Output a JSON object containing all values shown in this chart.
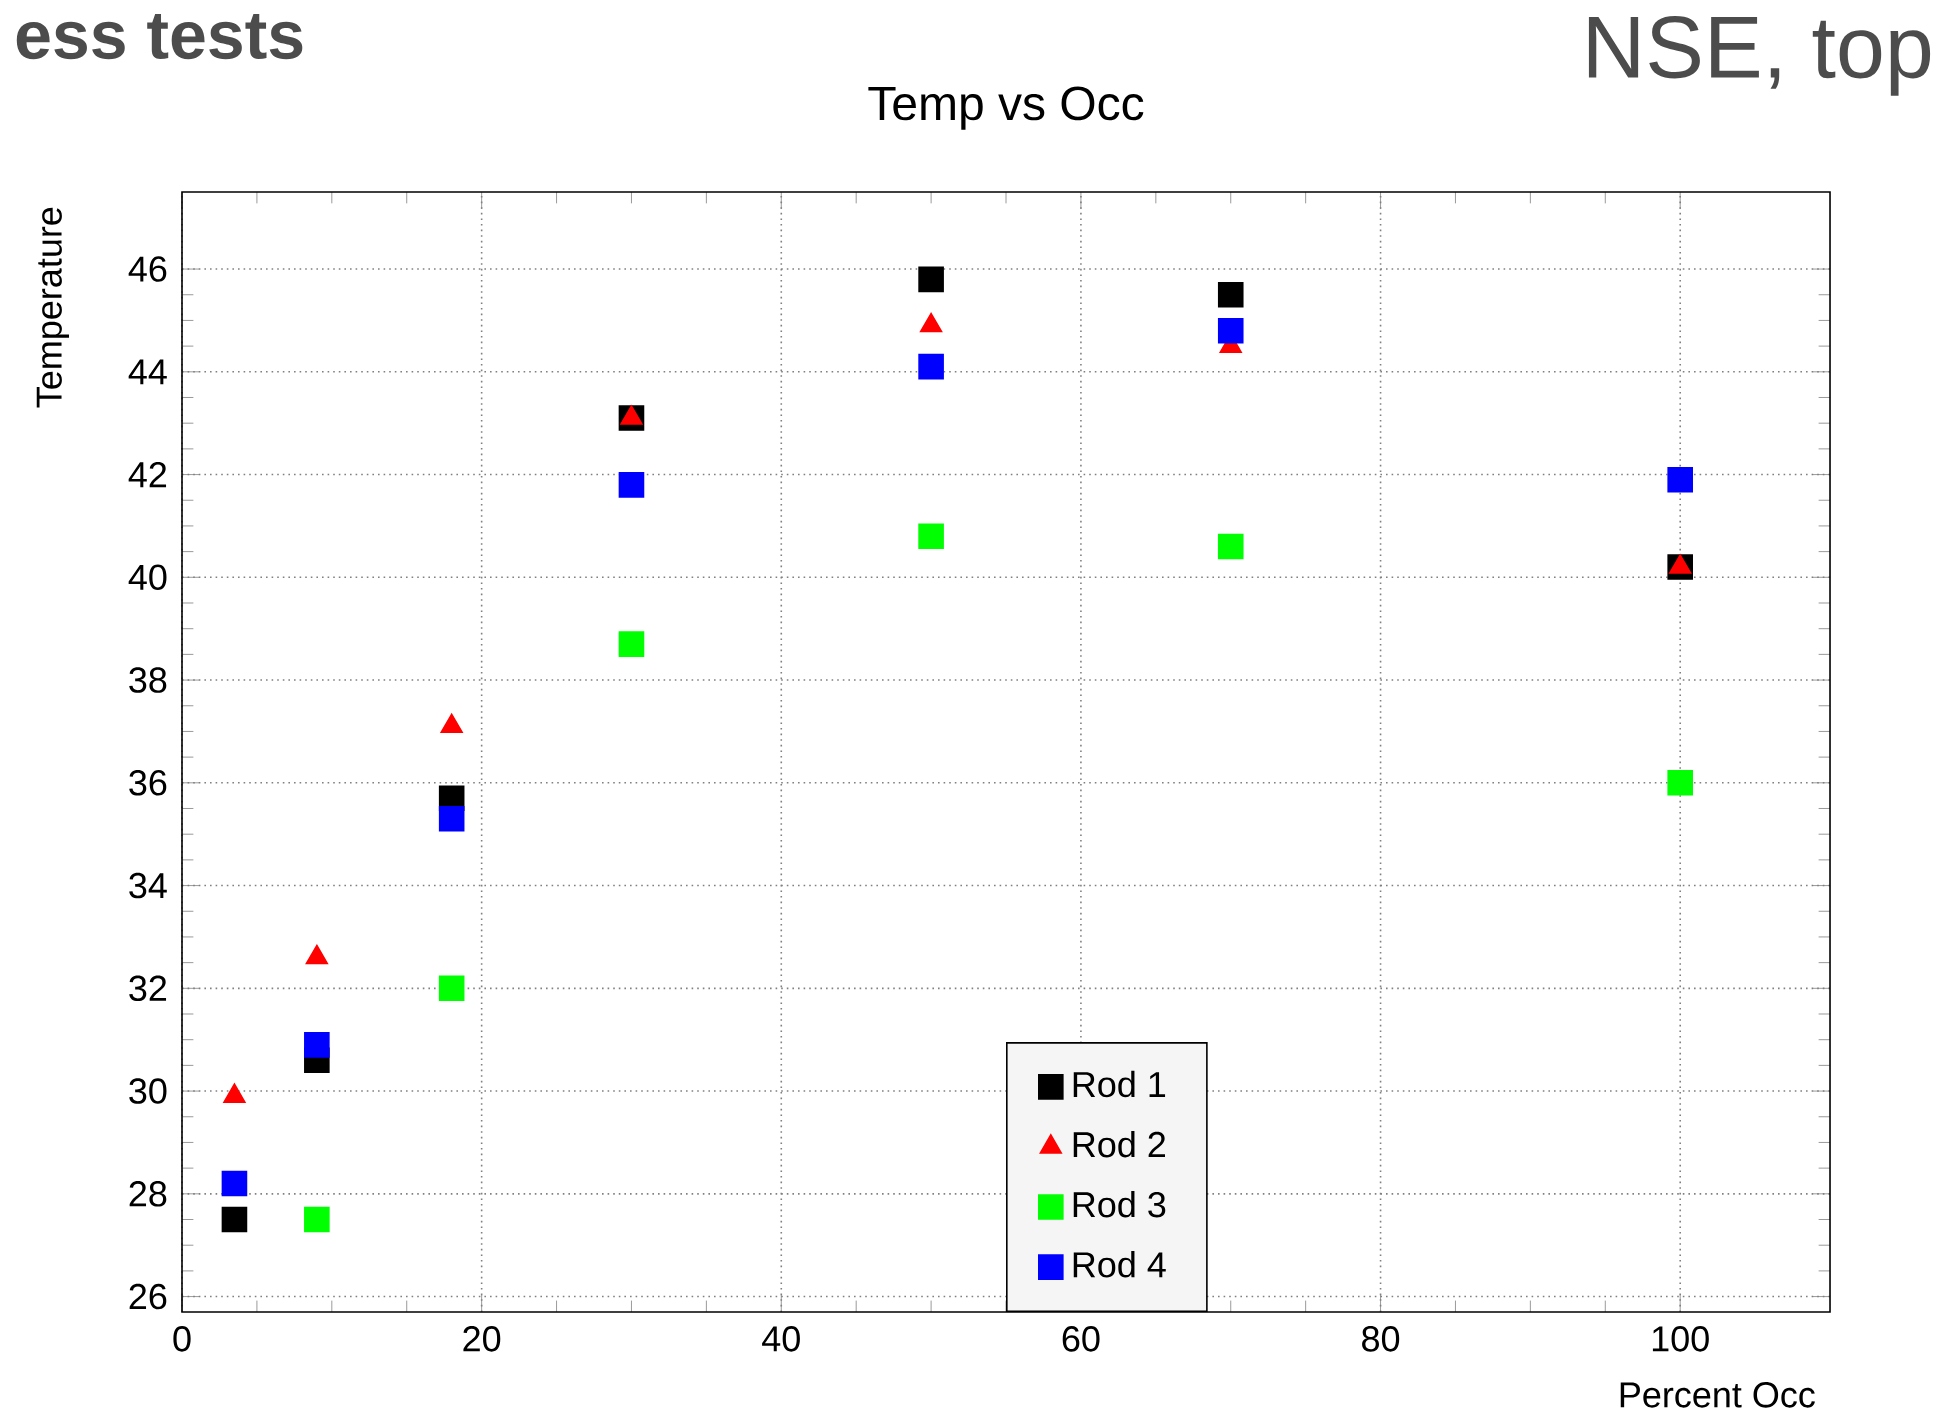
{
  "chart_data": {
    "type": "scatter",
    "title": "Temp vs Occ",
    "xlabel": "Percent Occ",
    "ylabel": "Temperature",
    "x": [
      3.5,
      9,
      18,
      30,
      50,
      70,
      100
    ],
    "series": [
      {
        "name": "Rod 1",
        "color": "#000000",
        "marker": "square",
        "values": [
          27.5,
          30.6,
          35.7,
          43.1,
          45.8,
          45.5,
          40.2
        ]
      },
      {
        "name": "Rod 2",
        "color": "#ff0000",
        "marker": "triangle",
        "values": [
          29.9,
          32.6,
          37.1,
          43.1,
          44.9,
          44.5,
          40.2
        ]
      },
      {
        "name": "Rod 3",
        "color": "#00ff00",
        "marker": "square",
        "values": [
          null,
          27.5,
          32.0,
          38.7,
          40.8,
          40.6,
          36.0
        ]
      },
      {
        "name": "Rod 4",
        "color": "#0000ff",
        "marker": "square",
        "values": [
          28.2,
          30.9,
          35.3,
          41.8,
          44.1,
          44.8,
          41.9
        ]
      }
    ],
    "xlim": [
      0,
      110
    ],
    "ylim": [
      25.7,
      47.5
    ],
    "xticks": [
      0,
      20,
      40,
      60,
      80,
      100
    ],
    "yticks": [
      26,
      28,
      30,
      32,
      34,
      36,
      38,
      40,
      42,
      44,
      46
    ],
    "grid": true,
    "legend": "bottom",
    "annotations": [
      "ess tests",
      "NSE, top"
    ]
  }
}
